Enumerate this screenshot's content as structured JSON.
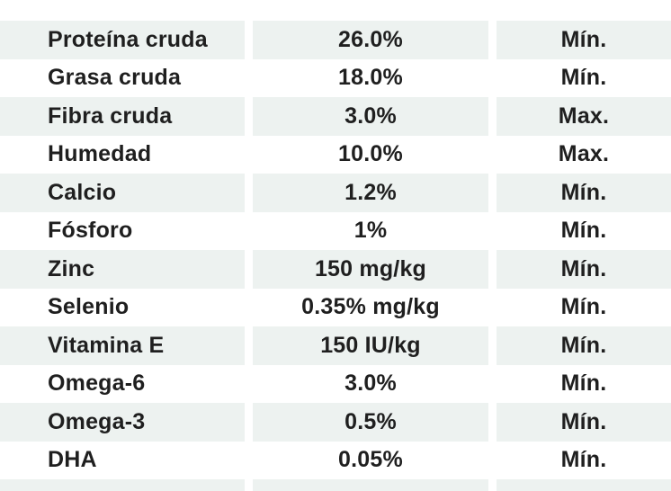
{
  "table": {
    "rows": [
      {
        "nutrient": "Proteína cruda",
        "value": "26.0%",
        "limit": "Mín."
      },
      {
        "nutrient": "Grasa cruda",
        "value": "18.0%",
        "limit": "Mín."
      },
      {
        "nutrient": "Fibra cruda",
        "value": "3.0%",
        "limit": "Max."
      },
      {
        "nutrient": "Humedad",
        "value": "10.0%",
        "limit": "Max."
      },
      {
        "nutrient": "Calcio",
        "value": "1.2%",
        "limit": "Mín."
      },
      {
        "nutrient": "Fósforo",
        "value": "1%",
        "limit": "Mín."
      },
      {
        "nutrient": "Zinc",
        "value": "150 mg/kg",
        "limit": "Mín."
      },
      {
        "nutrient": "Selenio",
        "value": "0.35% mg/kg",
        "limit": "Mín."
      },
      {
        "nutrient": "Vitamina E",
        "value": "150 IU/kg",
        "limit": "Mín."
      },
      {
        "nutrient": "Omega-6",
        "value": "3.0%",
        "limit": "Mín."
      },
      {
        "nutrient": "Omega-3",
        "value": "0.5%",
        "limit": "Mín."
      },
      {
        "nutrient": "DHA",
        "value": "0.05%",
        "limit": "Mín."
      }
    ]
  },
  "colors": {
    "row_shaded_bg": "#edf2f0",
    "text_color": "#1f1f1f",
    "page_bg": "#ffffff"
  }
}
